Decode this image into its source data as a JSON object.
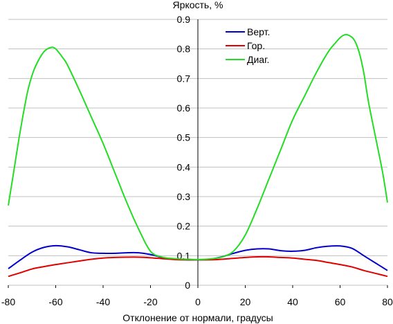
{
  "chart_data": {
    "type": "line",
    "title": "",
    "xlabel": "Отклонение от нормали, градусы",
    "ylabel": "Яркость, %",
    "xlim": [
      -80,
      80
    ],
    "ylim": [
      0,
      0.9
    ],
    "x_ticks": [
      "-80",
      "-60",
      "-40",
      "-20",
      "0",
      "20",
      "40",
      "60",
      "80"
    ],
    "y_ticks": [
      "0",
      "0.1",
      "0.2",
      "0.3",
      "0.4",
      "0.5",
      "0.6",
      "0.7",
      "0.8",
      "0.9"
    ],
    "grid": "horizontal",
    "legend_position": "top-right",
    "series": [
      {
        "name": "Верт.",
        "color": "#0000cc",
        "x": [
          -80,
          -75,
          -70,
          -65,
          -60,
          -55,
          -50,
          -45,
          -40,
          -35,
          -30,
          -25,
          -20,
          -15,
          -10,
          -5,
          0,
          5,
          10,
          15,
          20,
          25,
          30,
          35,
          40,
          45,
          50,
          55,
          60,
          65,
          70,
          75,
          80
        ],
        "y": [
          0.056,
          0.085,
          0.112,
          0.128,
          0.134,
          0.13,
          0.12,
          0.11,
          0.108,
          0.108,
          0.11,
          0.11,
          0.104,
          0.094,
          0.088,
          0.086,
          0.086,
          0.088,
          0.096,
          0.108,
          0.118,
          0.123,
          0.123,
          0.117,
          0.115,
          0.118,
          0.127,
          0.132,
          0.133,
          0.125,
          0.1,
          0.075,
          0.05
        ]
      },
      {
        "name": "Гор.",
        "color": "#e00000",
        "x": [
          -80,
          -75,
          -70,
          -65,
          -60,
          -55,
          -50,
          -45,
          -40,
          -35,
          -30,
          -25,
          -20,
          -15,
          -10,
          -5,
          0,
          5,
          10,
          15,
          20,
          25,
          30,
          35,
          40,
          45,
          50,
          55,
          60,
          65,
          70,
          75,
          80
        ],
        "y": [
          0.03,
          0.042,
          0.055,
          0.063,
          0.07,
          0.076,
          0.082,
          0.088,
          0.092,
          0.094,
          0.095,
          0.095,
          0.093,
          0.09,
          0.087,
          0.086,
          0.086,
          0.086,
          0.088,
          0.091,
          0.094,
          0.096,
          0.096,
          0.094,
          0.092,
          0.088,
          0.084,
          0.077,
          0.07,
          0.062,
          0.05,
          0.04,
          0.03
        ]
      },
      {
        "name": "Диаг.",
        "color": "#22dd22",
        "x": [
          -80,
          -78,
          -75,
          -72,
          -70,
          -68,
          -65,
          -62,
          -60,
          -57,
          -55,
          -50,
          -45,
          -40,
          -35,
          -30,
          -25,
          -20,
          -15,
          -10,
          -5,
          0,
          5,
          10,
          15,
          20,
          25,
          30,
          35,
          40,
          45,
          50,
          55,
          58,
          60,
          62,
          64,
          66,
          68,
          70,
          72,
          75,
          78,
          80
        ],
        "y": [
          0.27,
          0.37,
          0.52,
          0.65,
          0.71,
          0.75,
          0.79,
          0.805,
          0.8,
          0.77,
          0.745,
          0.66,
          0.57,
          0.48,
          0.38,
          0.28,
          0.19,
          0.115,
          0.095,
          0.09,
          0.088,
          0.087,
          0.089,
          0.095,
          0.115,
          0.17,
          0.26,
          0.36,
          0.46,
          0.56,
          0.64,
          0.72,
          0.79,
          0.82,
          0.838,
          0.848,
          0.845,
          0.83,
          0.79,
          0.72,
          0.62,
          0.5,
          0.38,
          0.28
        ]
      }
    ]
  }
}
